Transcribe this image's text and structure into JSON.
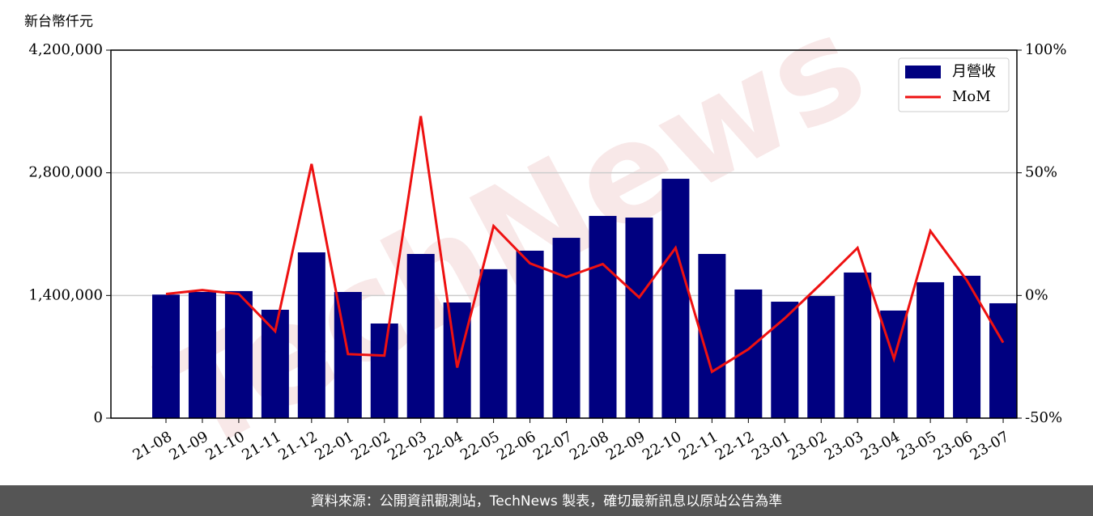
{
  "chart_data": {
    "type": "bar_line",
    "y_label": "新台幣仟元",
    "categories": [
      "21-08",
      "21-09",
      "21-10",
      "21-11",
      "21-12",
      "22-01",
      "22-02",
      "22-03",
      "22-04",
      "22-05",
      "22-06",
      "22-07",
      "22-08",
      "22-09",
      "22-10",
      "22-11",
      "22-12",
      "23-01",
      "23-02",
      "23-03",
      "23-04",
      "23-05",
      "23-06",
      "23-07"
    ],
    "series": [
      {
        "name": "月營收",
        "color": "#000080",
        "values": [
          1410000,
          1440000,
          1450000,
          1237000,
          1892000,
          1440000,
          1080000,
          1874000,
          1320000,
          1700000,
          1911000,
          2058000,
          2308000,
          2289000,
          2732000,
          1874000,
          1468000,
          1329000,
          1394000,
          1662000,
          1228000,
          1551000,
          1625000,
          1311000
        ]
      },
      {
        "name": "MoM",
        "color": "#ee1111",
        "axis": "y2",
        "values": [
          0.6,
          2.2,
          0.6,
          -14.6,
          53.6,
          -23.9,
          -24.5,
          73.1,
          -29.4,
          28.3,
          13.1,
          7.5,
          12.8,
          -0.8,
          19.4,
          -31.1,
          -21.9,
          -9.3,
          4.8,
          19.4,
          -25.8,
          26.3,
          6.2,
          -19.2
        ]
      }
    ],
    "ylim": [
      0,
      4200000
    ],
    "yticks": [
      0,
      {
        "value": 1400000,
        "label": "1,400,000"
      },
      {
        "value": 2800000,
        "label": "2,800,000"
      },
      {
        "value": 4200000,
        "label": "4,200,000"
      }
    ],
    "y2lim": [
      -50,
      100
    ],
    "y2ticks": [
      {
        "value": -50,
        "label": "-50%"
      },
      {
        "value": 0,
        "label": "0%"
      },
      {
        "value": 50,
        "label": "50%"
      },
      {
        "value": 100,
        "label": "100%"
      }
    ],
    "grid": true,
    "legend": "upper right",
    "watermark": "TechNews",
    "source": "資料來源：公開資訊觀測站，TechNews 製表，確切最新訊息以原站公告為準"
  }
}
